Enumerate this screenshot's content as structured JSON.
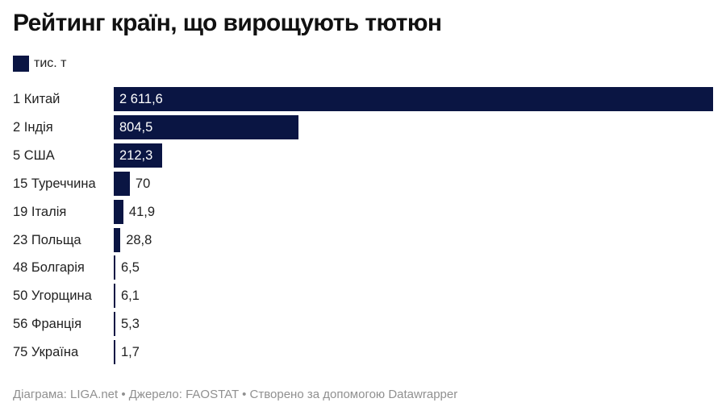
{
  "chart_data": {
    "type": "bar",
    "orientation": "horizontal",
    "title": "Рейтинг країн, що вирощують тютюн",
    "legend": {
      "label": "тис. т",
      "color": "#0a1543",
      "placement": "top-left"
    },
    "categories": [
      "1 Китай",
      "2 Індія",
      "5 США",
      "15 Туреччина",
      "19 Італія",
      "23 Польща",
      "48 Болгарія",
      "50 Угорщина",
      "56 Франція",
      "75 Україна"
    ],
    "values": [
      2611.6,
      804.5,
      212.3,
      70,
      41.9,
      28.8,
      6.5,
      6.1,
      5.3,
      1.7
    ],
    "value_labels": [
      "2 611,6",
      "804,5",
      "212,3",
      "70",
      "41,9",
      "28,8",
      "6,5",
      "6,1",
      "5,3",
      "1,7"
    ],
    "xlim": [
      0,
      2611.6
    ],
    "grid": false
  },
  "footer": "Діаграма: LIGA.net • Джерело: FAOSTAT • Створено за допомогою Datawrapper"
}
